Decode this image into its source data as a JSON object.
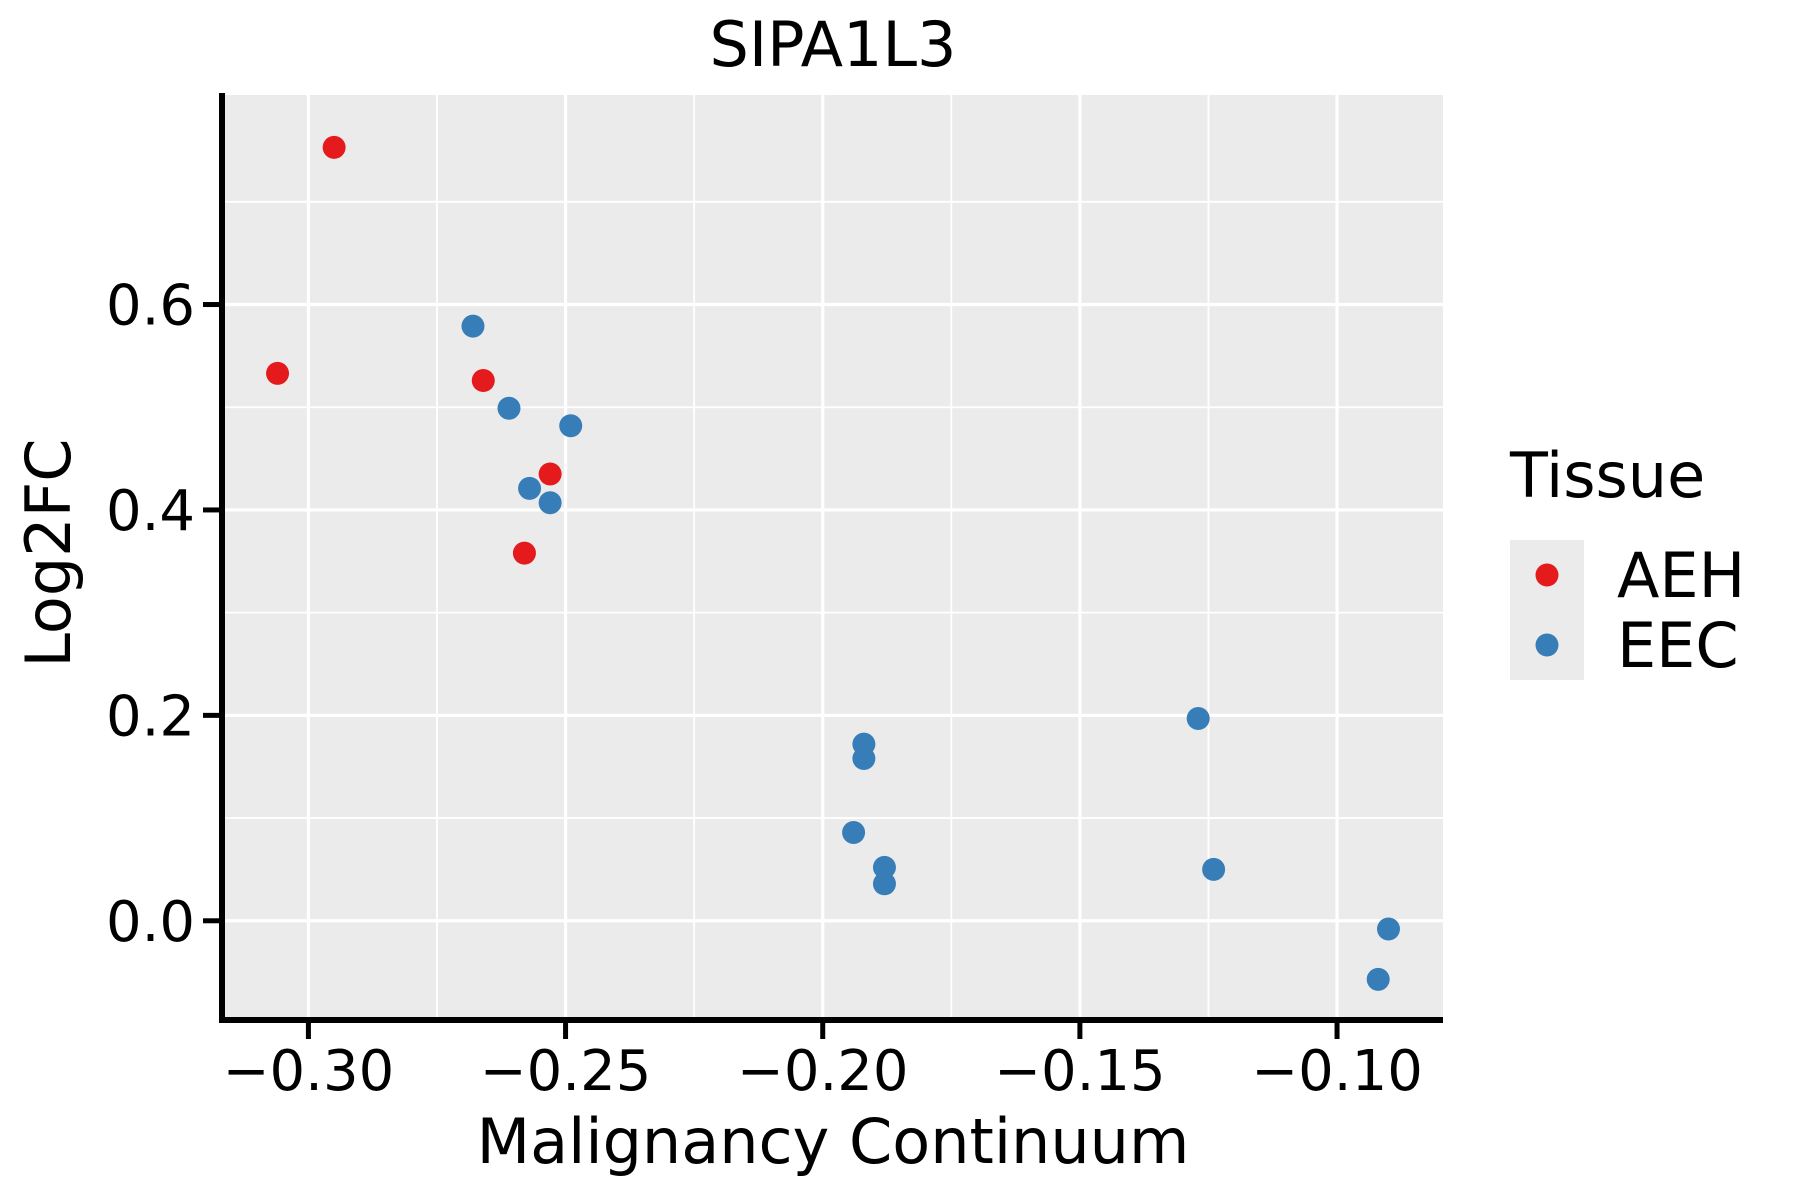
{
  "chart_data": {
    "type": "scatter",
    "title": "SIPA1L3",
    "xlabel": "Malignancy Continuum",
    "ylabel": "Log2FC",
    "xlim": [
      -0.3168,
      -0.0794
    ],
    "ylim": [
      -0.0966,
      0.804
    ],
    "grid": "on",
    "x_ticks": {
      "values": [
        -0.3,
        -0.25,
        -0.2,
        -0.15,
        -0.1
      ],
      "labels": [
        "−0.30",
        "−0.25",
        "−0.20",
        "−0.15",
        "−0.10"
      ]
    },
    "x_minor_ticks": [
      -0.275,
      -0.225,
      -0.175,
      -0.125
    ],
    "y_ticks": {
      "values": [
        0.0,
        0.2,
        0.4,
        0.6
      ],
      "labels": [
        "0.0",
        "0.2",
        "0.4",
        "0.6"
      ]
    },
    "y_minor_ticks": [
      0.1,
      0.3,
      0.5,
      0.7
    ],
    "series": [
      {
        "name": "AEH",
        "color": "#e41a1c",
        "points": [
          [
            -0.295,
            0.753
          ],
          [
            -0.306,
            0.533
          ],
          [
            -0.266,
            0.526
          ],
          [
            -0.253,
            0.435
          ],
          [
            -0.258,
            0.358
          ]
        ]
      },
      {
        "name": "EEC",
        "color": "#377eb8",
        "points": [
          [
            -0.268,
            0.579
          ],
          [
            -0.261,
            0.499
          ],
          [
            -0.249,
            0.482
          ],
          [
            -0.257,
            0.421
          ],
          [
            -0.253,
            0.407
          ],
          [
            -0.192,
            0.172
          ],
          [
            -0.192,
            0.158
          ],
          [
            -0.194,
            0.086
          ],
          [
            -0.188,
            0.052
          ],
          [
            -0.188,
            0.036
          ],
          [
            -0.127,
            0.197
          ],
          [
            -0.124,
            0.05
          ],
          [
            -0.09,
            -0.008
          ],
          [
            -0.092,
            -0.057
          ]
        ]
      }
    ],
    "legend": {
      "title": "Tissue",
      "position": "right",
      "entries": [
        {
          "label": "AEH",
          "color": "#e41a1c"
        },
        {
          "label": "EEC",
          "color": "#377eb8"
        }
      ]
    },
    "colors": {
      "panel_background": "#ebebeb",
      "gridline": "#ffffff",
      "axis": "#000000",
      "legend_key_background": "#ebebeb"
    }
  }
}
